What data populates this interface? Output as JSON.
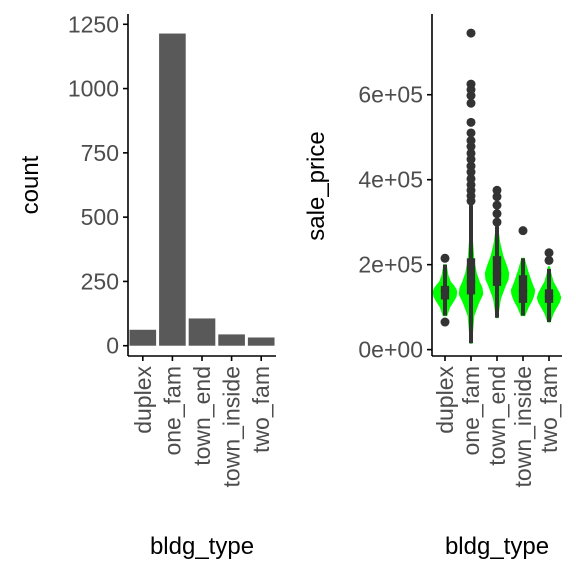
{
  "chart_data": [
    {
      "type": "bar",
      "xlabel": "bldg_type",
      "ylabel": "count",
      "categories": [
        "duplex",
        "one_fam",
        "town_end",
        "town_inside",
        "two_fam"
      ],
      "values": [
        62,
        1214,
        106,
        44,
        32
      ],
      "ylim": [
        -40,
        1290
      ],
      "yticks": [
        0,
        250,
        500,
        750,
        1000,
        1250
      ],
      "grid": false,
      "bar_color": "#595959"
    },
    {
      "type": "violin-boxplot",
      "xlabel": "bldg_type",
      "ylabel": "sale_price",
      "categories": [
        "duplex",
        "one_fam",
        "town_end",
        "town_inside",
        "two_fam"
      ],
      "ylim": [
        -15000,
        790000
      ],
      "yticks": [
        0,
        200000,
        400000,
        600000
      ],
      "ytick_labels": [
        "0e+00",
        "2e+05",
        "4e+05",
        "6e+05"
      ],
      "grid": false,
      "violin_color": "#00ff00",
      "box_color": "#333333",
      "series": [
        {
          "category": "duplex",
          "min": 80000,
          "q1": 118000,
          "median": 138000,
          "q3": 150000,
          "max": 200000,
          "outliers": [
            65000,
            215000
          ],
          "density_y": [
            80000,
            100000,
            115000,
            125000,
            135000,
            142000,
            150000,
            160000,
            175000,
            200000
          ],
          "density_w": [
            0.15,
            0.4,
            0.75,
            0.95,
            1.0,
            0.95,
            0.75,
            0.45,
            0.25,
            0.1
          ]
        },
        {
          "category": "one_fam",
          "min": 15000,
          "q1": 130000,
          "median": 160000,
          "q3": 215000,
          "max": 340000,
          "outliers": [
            350000,
            362000,
            375000,
            388000,
            402000,
            418000,
            432000,
            448000,
            462000,
            478000,
            492000,
            510000,
            535000,
            580000,
            598000,
            612000,
            625000,
            745000
          ],
          "density_y": [
            15000,
            80000,
            110000,
            130000,
            145000,
            160000,
            180000,
            210000,
            260000,
            340000
          ],
          "density_w": [
            0.05,
            0.25,
            0.65,
            1.0,
            0.95,
            0.7,
            0.45,
            0.25,
            0.12,
            0.05
          ]
        },
        {
          "category": "town_end",
          "min": 75000,
          "q1": 150000,
          "median": 180000,
          "q3": 220000,
          "max": 290000,
          "outliers": [
            300000,
            320000,
            340000,
            360000,
            375000
          ],
          "density_y": [
            75000,
            120000,
            150000,
            165000,
            180000,
            195000,
            220000,
            250000,
            280000,
            295000
          ],
          "density_w": [
            0.05,
            0.3,
            0.7,
            0.95,
            1.0,
            0.85,
            0.5,
            0.25,
            0.1,
            0.05
          ]
        },
        {
          "category": "town_inside",
          "min": 80000,
          "q1": 110000,
          "median": 138000,
          "q3": 175000,
          "max": 215000,
          "outliers": [
            280000
          ],
          "density_y": [
            80000,
            100000,
            115000,
            130000,
            140000,
            150000,
            165000,
            185000,
            205000,
            215000
          ],
          "density_w": [
            0.15,
            0.45,
            0.75,
            0.95,
            1.0,
            0.85,
            0.65,
            0.4,
            0.2,
            0.1
          ]
        },
        {
          "category": "two_fam",
          "min": 65000,
          "q1": 110000,
          "median": 125000,
          "q3": 142000,
          "max": 190000,
          "outliers": [
            210000,
            228000
          ],
          "density_y": [
            65000,
            85000,
            100000,
            112000,
            122000,
            132000,
            145000,
            160000,
            180000,
            195000
          ],
          "density_w": [
            0.1,
            0.35,
            0.65,
            0.9,
            1.0,
            0.9,
            0.65,
            0.35,
            0.15,
            0.05
          ]
        }
      ]
    }
  ]
}
